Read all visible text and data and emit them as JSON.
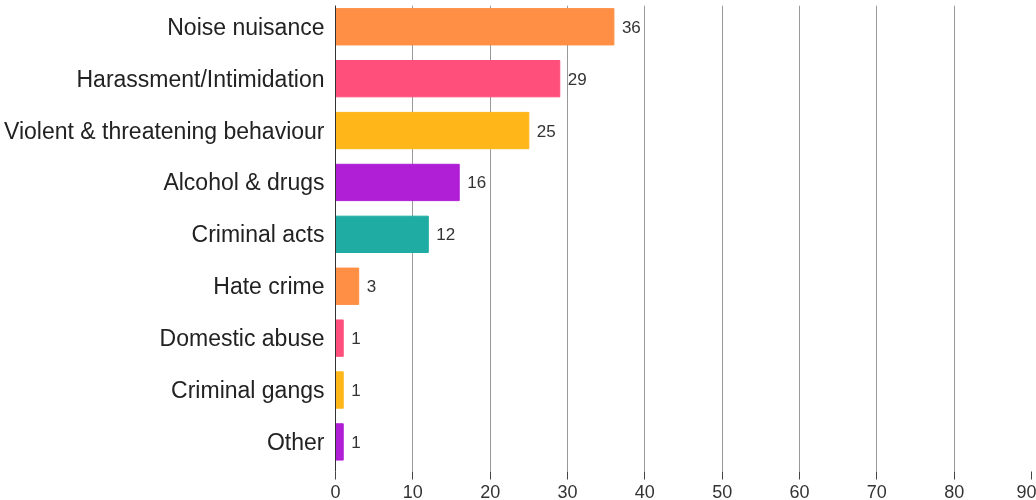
{
  "chart_data": {
    "type": "bar",
    "orientation": "horizontal",
    "categories": [
      "Noise nuisance",
      "Harassment/Intimidation",
      "Violent & threatening behaviour",
      "Alcohol & drugs",
      "Criminal acts",
      "Hate crime",
      "Domestic abuse",
      "Criminal gangs",
      "Other"
    ],
    "values": [
      36,
      29,
      25,
      16,
      12,
      3,
      1,
      1,
      1
    ],
    "colors": [
      "#ff8f45",
      "#ff4f7a",
      "#ffb619",
      "#b01ed6",
      "#1fada3",
      "#ff8f45",
      "#ff4f7a",
      "#ffb619",
      "#b01ed6"
    ],
    "xlim": [
      0,
      90
    ],
    "xticks": [
      0,
      10,
      20,
      30,
      40,
      50,
      60,
      70,
      80,
      90
    ],
    "grid": "x",
    "data_labels": true
  }
}
